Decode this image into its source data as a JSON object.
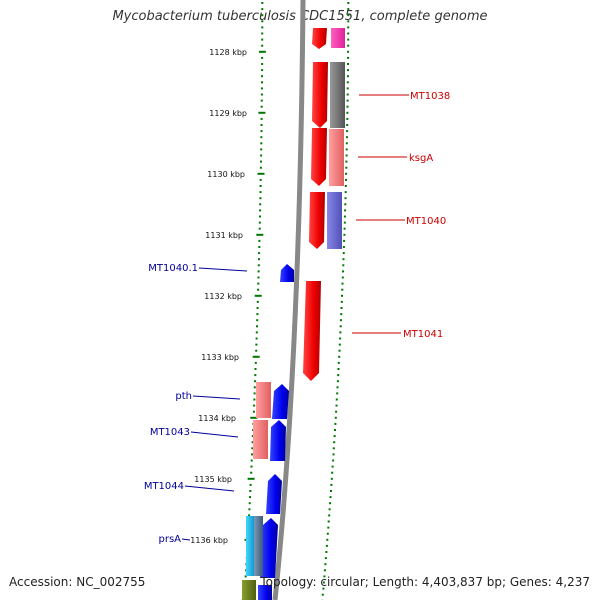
{
  "header": {
    "title": "Mycobacterium tuberculosis CDC1551, complete genome"
  },
  "footer": {
    "accession": "Accession: NC_002755",
    "topology": "Topology: circular; Length: 4,403,837 bp; Genes: 4,237"
  },
  "scale": {
    "unit": "kbp",
    "ticks": [
      "1128 kbp",
      "1129 kbp",
      "1130 kbp",
      "1131 kbp",
      "1132 kbp",
      "1133 kbp",
      "1134 kbp",
      "1135 kbp",
      "1136 kbp"
    ]
  },
  "colors": {
    "forward_gene": "#ff0000",
    "reverse_gene": "#0000ff",
    "forward_label": "#cc0000",
    "reverse_label": "#000099",
    "tick_marks": "#007700",
    "backbone": "#888888"
  },
  "genes": {
    "forward": [
      "MT1038",
      "ksgA",
      "MT1040",
      "MT1041"
    ],
    "reverse": [
      "MT1040.1",
      "pth",
      "MT1043",
      "MT1044",
      "prsA"
    ]
  }
}
